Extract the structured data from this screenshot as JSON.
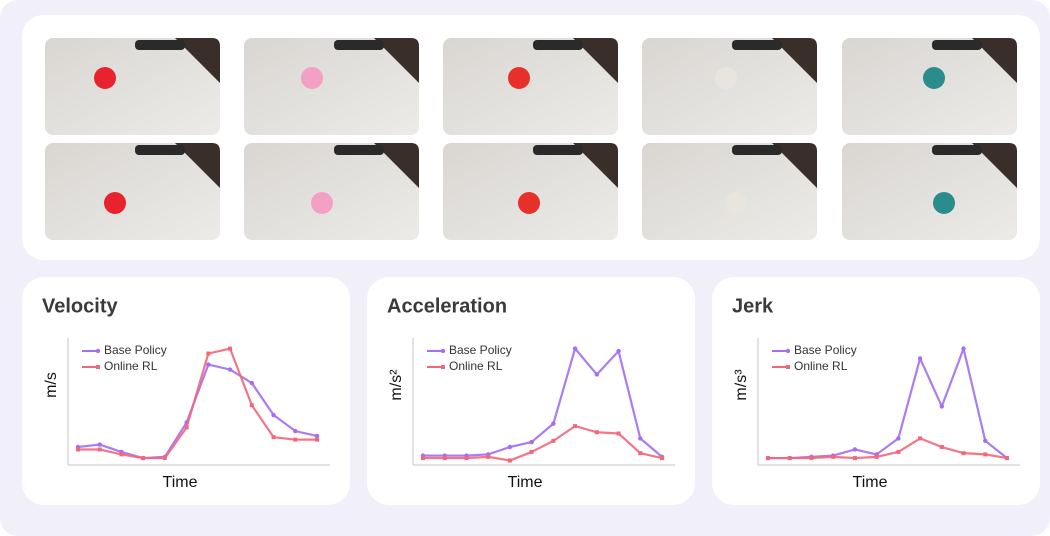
{
  "chart_data": [
    {
      "type": "line",
      "title": "Velocity",
      "ylabel": "m/s",
      "xlabel": "Time",
      "ylim": [
        0,
        100
      ],
      "series": [
        {
          "name": "Base Policy",
          "color": "#a46ef0",
          "values": [
            13,
            15,
            9,
            4,
            5,
            33,
            80,
            76,
            65,
            39,
            26,
            22
          ]
        },
        {
          "name": "Online RL",
          "color": "#f2677a",
          "values": [
            11,
            11,
            7,
            4,
            4,
            29,
            89,
            93,
            47,
            21,
            19,
            19
          ]
        }
      ]
    },
    {
      "type": "line",
      "title": "Acceleration",
      "ylabel": "m/s²",
      "xlabel": "Time",
      "ylim": [
        0,
        100
      ],
      "series": [
        {
          "name": "Base Policy",
          "color": "#a46ef0",
          "values": [
            6,
            6,
            6,
            7,
            13,
            17,
            32,
            93,
            72,
            91,
            20,
            5
          ]
        },
        {
          "name": "Online RL",
          "color": "#f2677a",
          "values": [
            4,
            4,
            4,
            5,
            2,
            9,
            18,
            30,
            25,
            24,
            8,
            4
          ]
        }
      ]
    },
    {
      "type": "line",
      "title": "Jerk",
      "ylabel": "m/s³",
      "xlabel": "Time",
      "ylim": [
        0,
        100
      ],
      "series": [
        {
          "name": "Base Policy",
          "color": "#a46ef0",
          "values": [
            4,
            4,
            5,
            6,
            11,
            7,
            20,
            85,
            46,
            93,
            18,
            4
          ]
        },
        {
          "name": "Online RL",
          "color": "#f2677a",
          "values": [
            4,
            4,
            4,
            5,
            4,
            5,
            9,
            20,
            13,
            8,
            7,
            4
          ]
        }
      ]
    }
  ]
}
